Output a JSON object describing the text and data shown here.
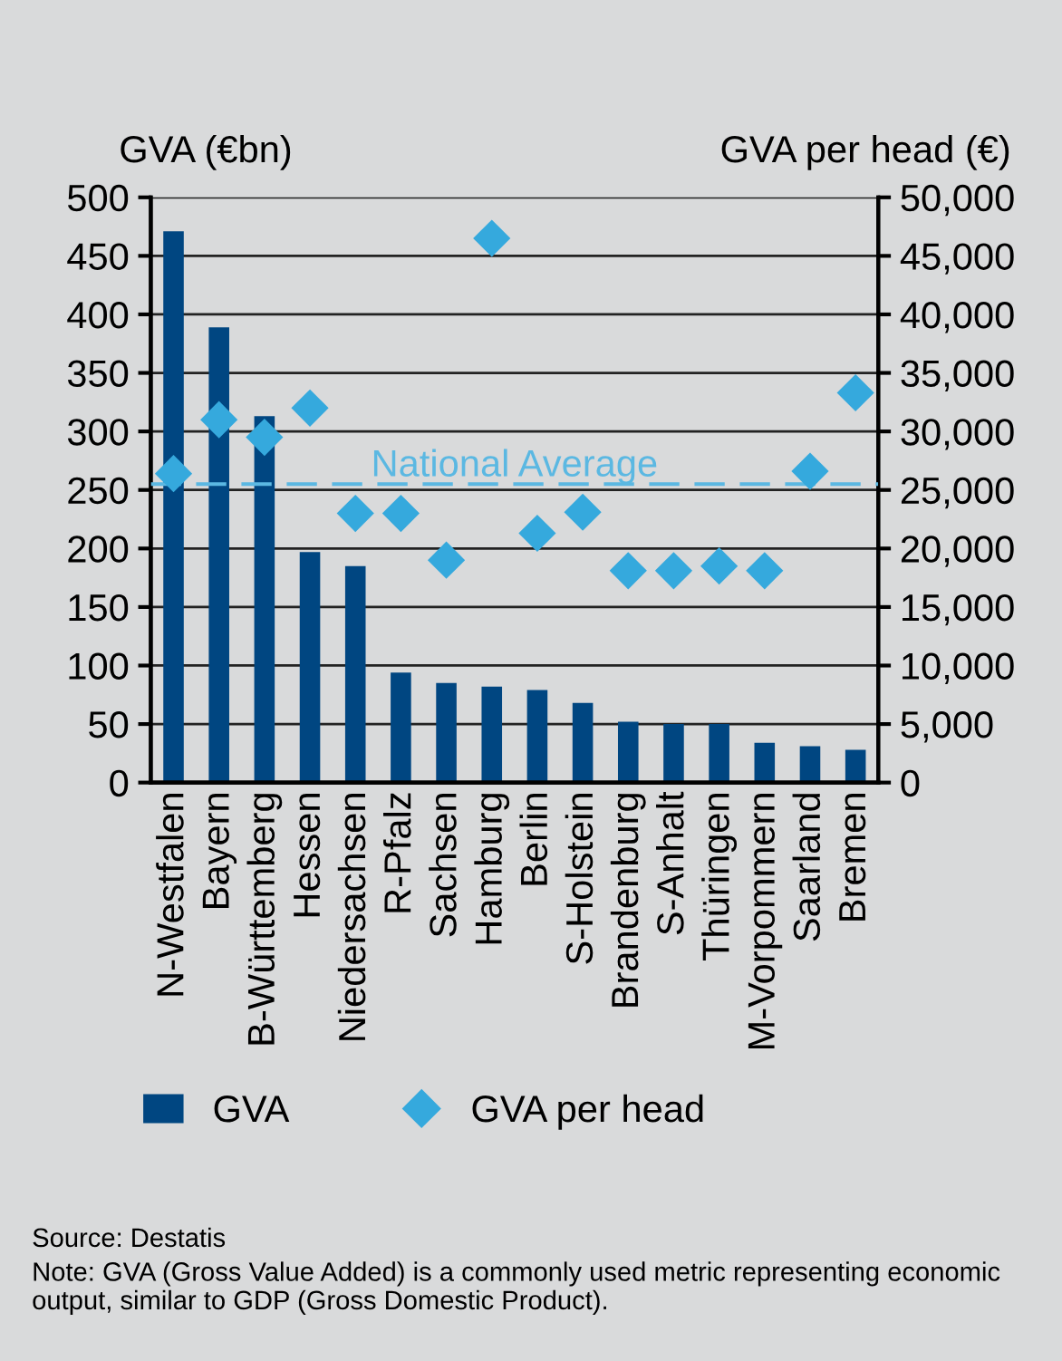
{
  "chart_data": {
    "type": "bar",
    "ylabel": "GVA (€bn)",
    "y2label": "GVA per head (€)",
    "categories": [
      "N-Westfalen",
      "Bayern",
      "B-Württemberg",
      "Hessen",
      "Niedersachsen",
      "R-Pfalz",
      "Sachsen",
      "Hamburg",
      "Berlin",
      "S-Holstein",
      "Brandenburg",
      "S-Anhalt",
      "Thüringen",
      "M-Vorpommern",
      "Saarland",
      "Bremen"
    ],
    "series": [
      {
        "name": "GVA",
        "color": "#004681",
        "values": [
          471,
          389,
          313,
          197,
          185,
          94,
          85,
          82,
          79,
          68,
          52,
          50,
          50,
          34,
          31,
          28
        ]
      },
      {
        "name": "GVA per head",
        "type": "scatter",
        "axis": "y2",
        "marker": "diamond",
        "color": "#35a9dd",
        "values": [
          26400,
          31000,
          29500,
          32000,
          23000,
          23000,
          19000,
          46500,
          21300,
          23100,
          18100,
          18100,
          18500,
          18100,
          26600,
          33300
        ]
      }
    ],
    "ylim": [
      0,
      500
    ],
    "yticks": [
      0,
      50,
      100,
      150,
      200,
      250,
      300,
      350,
      400,
      450,
      500
    ],
    "y2lim": [
      0,
      50000
    ],
    "y2ticks": [
      {
        "value": 0,
        "label": "0"
      },
      {
        "value": 5000,
        "label": "5,000"
      },
      {
        "value": 10000,
        "label": "10,000"
      },
      {
        "value": 15000,
        "label": "15,000"
      },
      {
        "value": 20000,
        "label": "20,000"
      },
      {
        "value": 25000,
        "label": "25,000"
      },
      {
        "value": 30000,
        "label": "30,000"
      },
      {
        "value": 35000,
        "label": "35,000"
      },
      {
        "value": 40000,
        "label": "40,000"
      },
      {
        "value": 45000,
        "label": "45,000"
      },
      {
        "value": 50000,
        "label": "50,000"
      }
    ],
    "ref_lines": [
      {
        "axis": "y2",
        "value": 25500,
        "label": "National Average",
        "color": "#5bb8e2",
        "line_style": "dashed"
      }
    ],
    "grid": "y",
    "legend": "bottom",
    "annotations": [
      "Source: Destatis",
      "Note: GVA (Gross Value Added) is a commonly used metric representing economic output, similar to GDP (Gross Domestic Product)."
    ]
  }
}
